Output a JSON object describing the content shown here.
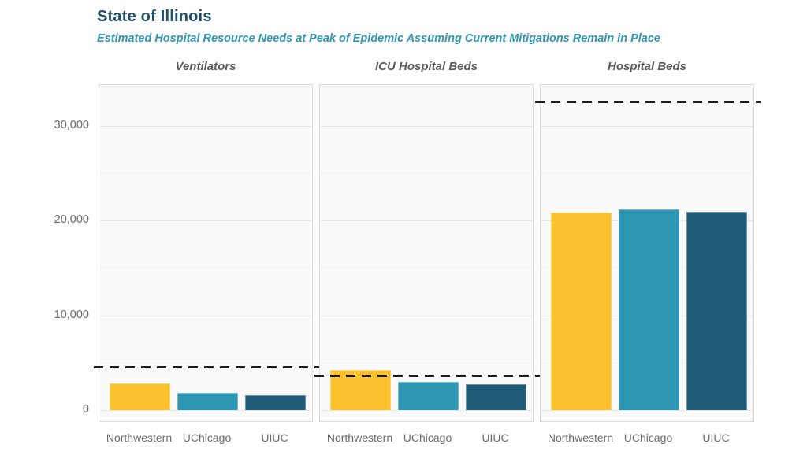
{
  "header": {
    "title": "State of Illinois",
    "subtitle": "Estimated Hospital Resource Needs at Peak of Epidemic Assuming Current Mitigations Remain in Place"
  },
  "chart_data": {
    "type": "bar",
    "title": "State of Illinois",
    "subtitle": "Estimated Hospital Resource Needs at Peak of Epidemic Assuming Current Mitigations Remain in Place",
    "categories": [
      "Northwestern",
      "UChicago",
      "UIUC"
    ],
    "facets": [
      {
        "title": "Ventilators",
        "values": [
          2850,
          1800,
          1550
        ],
        "capacity_dashed_line": 4500
      },
      {
        "title": "ICU Hospital Beds",
        "values": [
          4250,
          3000,
          2750
        ],
        "capacity_dashed_line": 3650
      },
      {
        "title": "Hospital Beds",
        "values": [
          20800,
          21200,
          20900
        ],
        "capacity_dashed_line": 32500
      }
    ],
    "yticks": [
      {
        "value": 0,
        "label": "0"
      },
      {
        "value": 10000,
        "label": "10,000"
      },
      {
        "value": 20000,
        "label": "20,000"
      },
      {
        "value": 30000,
        "label": "30,000"
      }
    ],
    "ylim": [
      0,
      34270
    ],
    "xlabel": "",
    "ylabel": "",
    "grid": "major-and-minor-horizontal",
    "legend": "none"
  },
  "colors": {
    "title": "#1F4E68",
    "subtitle": "#2E96B4",
    "facet_title": "#595959",
    "axis_text": "#6A6A6A",
    "bar_northwestern": "#FCC22D",
    "bar_uchicago": "#2D96B3",
    "bar_uiuc": "#1F5B76",
    "capacity_line": "#1C1C1C",
    "panel_bg": "#FAFAFA",
    "panel_border": "#DBDBDB",
    "grid_major": "#E8E8E8",
    "grid_minor": "#F3F3F3"
  }
}
